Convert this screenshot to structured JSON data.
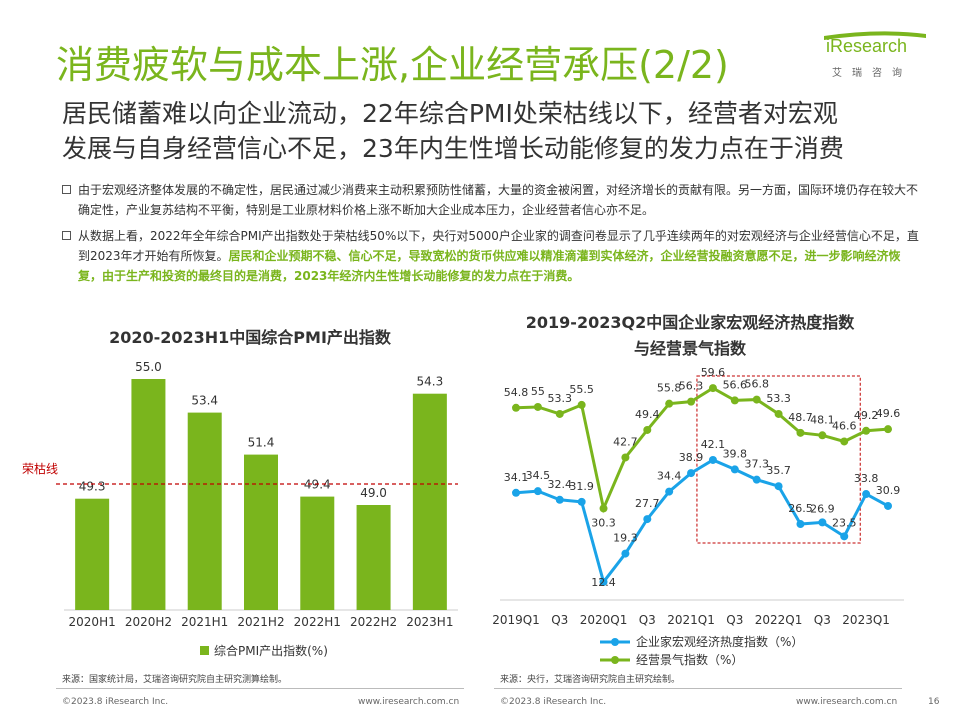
{
  "header": {
    "title": "消费疲软与成本上涨,企业经营承压(2/2)",
    "logo": {
      "word": "iResearch",
      "cn": "艾瑞咨询"
    }
  },
  "subtitle": {
    "line1": "居民储蓄难以向企业流动，22年综合PMI处荣枯线以下，经营者对宏观",
    "line2": "发展与自身经营信心不足，23年内生性增长动能修复的发力点在于消费"
  },
  "bullets": {
    "b1": "由于宏观经济整体发展的不确定性，居民通过减少消费来主动积累预防性储蓄，大量的资金被闲置，对经济增长的贡献有限。另一方面，国际环境仍存在较大不确定性，产业复苏结构不平衡，特别是工业原材料价格上涨不断加大企业成本压力，企业经营者信心亦不足。",
    "b2_plain": "从数据上看，2022年全年综合PMI产出指数处于荣枯线50%以下，央行对5000户企业家的调查问卷显示了几乎连续两年的对宏观经济与企业经营信心不足，直到2023年才开始有所恢复。",
    "b2_highlight": "居民和企业预期不稳、信心不足，导致宽松的货币供应难以精准滴灌到实体经济，企业经营投融资意愿不足，进一步影响经济恢复，由于生产和投资的最终目的是消费，2023年经济内生性增长动能修复的发力点在于消费。"
  },
  "chart_data": [
    {
      "type": "bar",
      "title": "2020-2023H1中国综合PMI产出指数",
      "categories": [
        "2020H1",
        "2020H2",
        "2021H1",
        "2021H2",
        "2022H1",
        "2022H2",
        "2023H1"
      ],
      "values": [
        49.3,
        55.0,
        53.4,
        51.4,
        49.4,
        49.0,
        54.3
      ],
      "value_labels": [
        "49.3",
        "55.0",
        "53.4",
        "51.4",
        "49.4",
        "49.0",
        "54.3"
      ],
      "ylim": [
        44,
        56
      ],
      "reference_line": {
        "label": "荣枯线",
        "value": 50
      },
      "legend": "综合PMI产出指数(%)",
      "bar_color": "#7ab51d",
      "ref_color": "#c00000"
    },
    {
      "type": "line",
      "title_line1": "2019-2023Q2中国企业家宏观经济热度指数",
      "title_line2": "与经营景气指数",
      "x_tick_labels": [
        "2019Q1",
        "Q3",
        "2020Q1",
        "Q3",
        "2021Q1",
        "Q3",
        "2022Q1",
        "Q3",
        "2023Q1"
      ],
      "ylim": [
        8,
        64
      ],
      "series": [
        {
          "name": "企业家宏观经济热度指数（%）",
          "color": "#1aa3e8",
          "values": [
            34.1,
            34.5,
            32.4,
            31.9,
            12.4,
            19.3,
            27.7,
            34.4,
            38.9,
            42.1,
            39.8,
            37.3,
            35.7,
            26.5,
            26.9,
            23.5,
            33.8,
            30.9
          ],
          "labels": [
            "34.1",
            "34.5",
            "32.4",
            "31.9",
            "12.4",
            "19.3",
            "27.7",
            "34.4",
            "38.9",
            "42.1",
            "39.8",
            "37.3",
            "35.7",
            "26.5",
            "26.9",
            "23.5",
            "33.8",
            "30.9"
          ]
        },
        {
          "name": "经营景气指数（%）",
          "color": "#7ab51d",
          "values": [
            54.8,
            55.0,
            53.3,
            55.5,
            30.3,
            42.7,
            49.4,
            55.8,
            56.3,
            59.6,
            56.6,
            56.8,
            53.3,
            48.7,
            48.1,
            46.6,
            49.2,
            49.6
          ],
          "labels": [
            "54.8",
            "55",
            "53.3",
            "55.5",
            "30.3",
            "42.7",
            "49.4",
            "55.8",
            "56.3",
            "59.6",
            "56.6",
            "56.8",
            "53.3",
            "48.7",
            "48.1",
            "46.6",
            "49.2",
            "49.6"
          ]
        }
      ],
      "highlight_box_color": "#c00000"
    }
  ],
  "sources": {
    "left": "来源：国家统计局，艾瑞咨询研究院自主研究测算绘制。",
    "right": "来源：央行，艾瑞咨询研究院自主研究绘制。"
  },
  "footer": {
    "copyright_left": "©2023.8 iResearch Inc.",
    "url_left": "www.iresearch.com.cn",
    "copyright_right": "©2023.8 iResearch Inc.",
    "url_right": "www.iresearch.com.cn",
    "page_number": "16"
  }
}
